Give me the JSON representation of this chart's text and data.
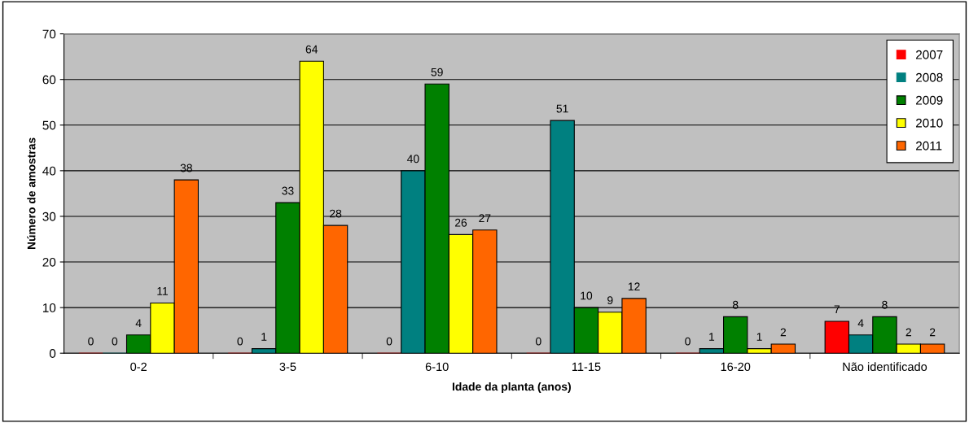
{
  "chart_data": {
    "type": "bar",
    "xlabel": "Idade da planta (anos)",
    "ylabel": "Número de amostras",
    "categories": [
      "0-2",
      "3-5",
      "6-10",
      "11-15",
      "16-20",
      "Não identificado"
    ],
    "series": [
      {
        "name": "2007",
        "color": "#ff0000",
        "values": [
          0,
          0,
          0,
          0,
          0,
          7
        ]
      },
      {
        "name": "2008",
        "color": "#008080",
        "values": [
          0,
          1,
          40,
          51,
          1,
          4
        ]
      },
      {
        "name": "2009",
        "color": "#008000",
        "values": [
          4,
          33,
          59,
          10,
          8,
          8
        ]
      },
      {
        "name": "2010",
        "color": "#ffff00",
        "values": [
          11,
          64,
          26,
          9,
          1,
          2
        ]
      },
      {
        "name": "2011",
        "color": "#ff6600",
        "values": [
          38,
          28,
          27,
          12,
          2,
          2
        ]
      }
    ],
    "ylim": [
      0,
      70
    ],
    "yticks": [
      0,
      10,
      20,
      30,
      40,
      50,
      60,
      70
    ],
    "grid": "y",
    "legend": "top right",
    "data_labels": true
  }
}
